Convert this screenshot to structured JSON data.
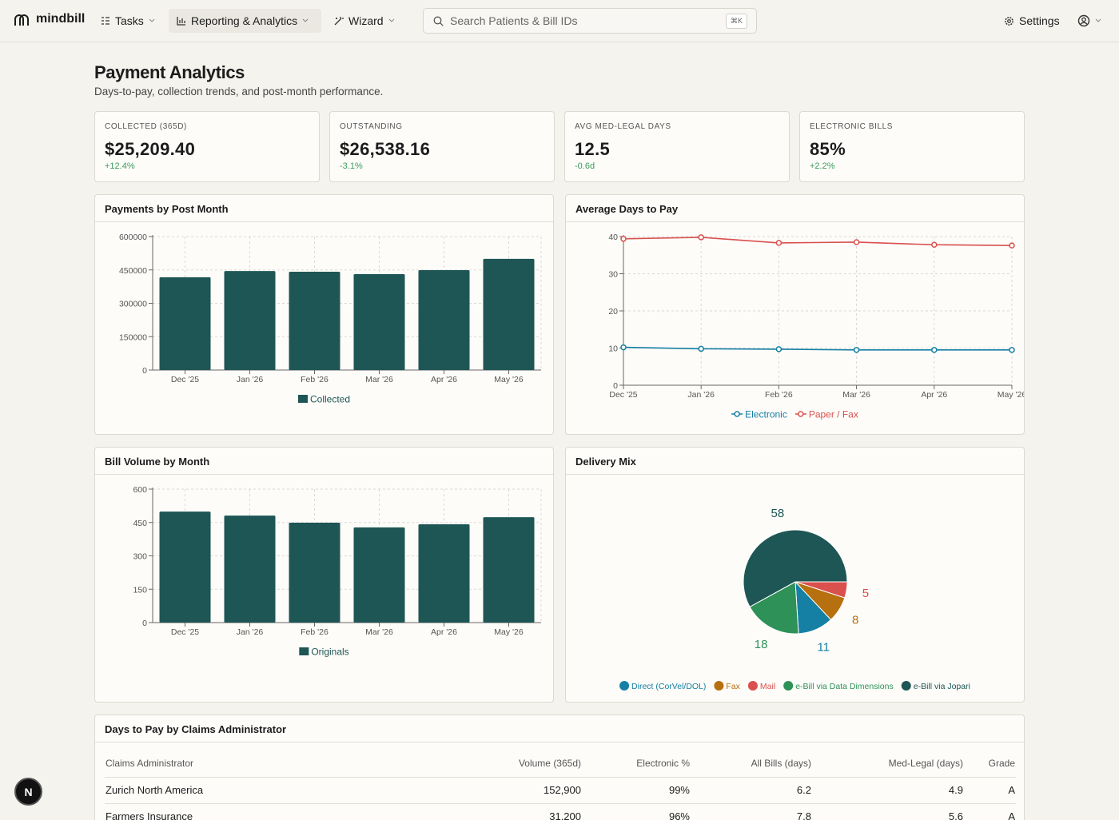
{
  "nav": {
    "brand": "mindbill",
    "items": [
      "Tasks",
      "Reporting & Analytics",
      "Wizard"
    ],
    "search_placeholder": "Search Patients & Bill IDs",
    "shortcut": "⌘K",
    "settings": "Settings"
  },
  "header": {
    "title": "Payment Analytics",
    "subtitle": "Days-to-pay, collection trends, and post-month performance."
  },
  "kpis": [
    {
      "label": "COLLECTED (365D)",
      "value": "$25,209.40",
      "delta": "+12.4%"
    },
    {
      "label": "OUTSTANDING",
      "value": "$26,538.16",
      "delta": "-3.1%"
    },
    {
      "label": "AVG MED-LEGAL DAYS",
      "value": "12.5",
      "delta": "-0.6d"
    },
    {
      "label": "ELECTRONIC BILLS",
      "value": "85%",
      "delta": "+2.2%"
    }
  ],
  "chart_data": [
    {
      "type": "bar",
      "title": "Payments by Post Month",
      "categories": [
        "Dec '25",
        "Jan '26",
        "Feb '26",
        "Mar '26",
        "Apr '26",
        "May '26"
      ],
      "series": [
        {
          "name": "Collected",
          "color": "#1d5655",
          "values": [
            417000,
            445000,
            442000,
            431000,
            449000,
            500000
          ]
        }
      ],
      "ylim": [
        0,
        600000
      ],
      "yticks": [
        0,
        150000,
        300000,
        450000,
        600000
      ],
      "grid": true,
      "legend": "bottom"
    },
    {
      "type": "line",
      "title": "Average Days to Pay",
      "categories": [
        "Dec '25",
        "Jan '26",
        "Feb '26",
        "Mar '26",
        "Apr '26",
        "May '26"
      ],
      "series": [
        {
          "name": "Electronic",
          "color": "#1580a3",
          "values": [
            10.2,
            9.8,
            9.7,
            9.5,
            9.5,
            9.5
          ]
        },
        {
          "name": "Paper / Fax",
          "color": "#d9504d",
          "values": [
            39.4,
            39.8,
            38.3,
            38.5,
            37.8,
            37.6
          ]
        }
      ],
      "ylim": [
        0,
        40
      ],
      "yticks": [
        0,
        10,
        20,
        30,
        40
      ],
      "grid": true,
      "legend": "bottom"
    },
    {
      "type": "bar",
      "title": "Bill Volume by Month",
      "categories": [
        "Dec '25",
        "Jan '26",
        "Feb '26",
        "Mar '26",
        "Apr '26",
        "May '26"
      ],
      "series": [
        {
          "name": "Originals",
          "color": "#1d5655",
          "values": [
            499,
            481,
            449,
            428,
            442,
            474
          ]
        }
      ],
      "ylim": [
        0,
        600
      ],
      "yticks": [
        0,
        150,
        300,
        450,
        600
      ],
      "grid": true,
      "legend": "bottom"
    },
    {
      "type": "pie",
      "title": "Delivery Mix",
      "categories": [
        "Direct (CorVel/DOL)",
        "Fax",
        "Mail",
        "e-Bill via Data Dimensions",
        "e-Bill via Jopari"
      ],
      "values": [
        11,
        8,
        5,
        18,
        58
      ],
      "colors": [
        "#1580a3",
        "#b7700f",
        "#d9504d",
        "#2e9158",
        "#1d5655"
      ],
      "legend": "bottom"
    }
  ],
  "table": {
    "title": "Days to Pay by Claims Administrator",
    "columns": [
      "Claims Administrator",
      "Volume (365d)",
      "Electronic %",
      "All Bills (days)",
      "Med-Legal (days)",
      "Grade"
    ],
    "rows": [
      [
        "Zurich North America",
        "152,900",
        "99%",
        "6.2",
        "4.9",
        "A"
      ],
      [
        "Farmers Insurance",
        "31,200",
        "96%",
        "7.8",
        "5.6",
        "A"
      ]
    ]
  },
  "badge": "N"
}
